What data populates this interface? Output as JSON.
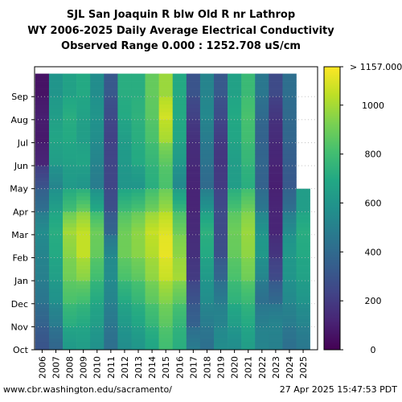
{
  "title_lines": [
    "SJL San Joaquin R blw Old R nr Lathrop",
    "WY 2006-2025 Daily Average Electrical Conductivity",
    "Observed Range 0.000 : 1252.708 uS/cm"
  ],
  "footer": {
    "left": "www.cbr.washington.edu/sacramento/",
    "right": "27 Apr 2025 15:47:53 PDT"
  },
  "colors": {
    "colormap": "viridis",
    "missing": "#ffffff",
    "grid": "#bbbbbb"
  },
  "chart_data": {
    "type": "heatmap",
    "title": "SJL San Joaquin R blw Old R nr Lathrop",
    "x": [
      "2006",
      "2007",
      "2008",
      "2009",
      "2010",
      "2011",
      "2012",
      "2013",
      "2014",
      "2015",
      "2016",
      "2017",
      "2018",
      "2019",
      "2020",
      "2021",
      "2022",
      "2023",
      "2024",
      "2025"
    ],
    "y_labels": [
      "Oct",
      "Nov",
      "Dec",
      "Jan",
      "Feb",
      "Mar",
      "Apr",
      "May",
      "Jun",
      "Jul",
      "Aug",
      "Sep"
    ],
    "colorbar": {
      "min": 0,
      "max": 1157,
      "ticks": [
        0,
        200,
        400,
        600,
        800,
        1000
      ],
      "top_label": "> 1157.000"
    },
    "value_units": "uS/cm",
    "monthly_values": {
      "2006": [
        300,
        360,
        450,
        500,
        520,
        560,
        420,
        300,
        120,
        80,
        100,
        60
      ],
      "2007": [
        380,
        480,
        580,
        650,
        700,
        720,
        650,
        520,
        640,
        680,
        640,
        600
      ],
      "2008": [
        620,
        720,
        820,
        900,
        950,
        1000,
        800,
        620,
        660,
        700,
        720,
        660
      ],
      "2009": [
        640,
        700,
        800,
        950,
        1050,
        1050,
        880,
        600,
        680,
        640,
        660,
        700
      ],
      "2010": [
        580,
        640,
        700,
        800,
        880,
        900,
        700,
        480,
        520,
        560,
        600,
        560
      ],
      "2011": [
        420,
        460,
        520,
        560,
        540,
        380,
        280,
        240,
        240,
        220,
        260,
        320
      ],
      "2012": [
        560,
        620,
        700,
        820,
        900,
        900,
        780,
        600,
        620,
        640,
        700,
        720
      ],
      "2013": [
        600,
        680,
        760,
        860,
        950,
        960,
        820,
        600,
        700,
        720,
        740,
        720
      ],
      "2014": [
        680,
        760,
        860,
        960,
        1020,
        1060,
        900,
        720,
        760,
        820,
        860,
        880
      ],
      "2015": [
        800,
        860,
        940,
        1060,
        1120,
        1100,
        980,
        820,
        860,
        1000,
        1080,
        980
      ],
      "2016": [
        720,
        760,
        860,
        1000,
        960,
        900,
        760,
        540,
        620,
        680,
        700,
        700
      ],
      "2017": [
        480,
        360,
        300,
        200,
        160,
        140,
        120,
        120,
        140,
        160,
        220,
        300
      ],
      "2018": [
        420,
        480,
        560,
        620,
        700,
        740,
        600,
        400,
        440,
        480,
        540,
        520
      ],
      "2019": [
        560,
        520,
        480,
        380,
        280,
        260,
        260,
        200,
        180,
        200,
        260,
        320
      ],
      "2020": [
        560,
        640,
        740,
        820,
        880,
        900,
        820,
        640,
        640,
        680,
        700,
        660
      ],
      "2021": [
        640,
        700,
        780,
        900,
        960,
        980,
        900,
        720,
        760,
        800,
        820,
        780
      ],
      "2022": [
        520,
        500,
        420,
        520,
        620,
        600,
        460,
        360,
        380,
        360,
        400,
        460
      ],
      "2023": [
        500,
        520,
        400,
        260,
        180,
        120,
        120,
        100,
        120,
        140,
        180,
        260
      ],
      "2024": [
        420,
        480,
        540,
        600,
        620,
        560,
        420,
        320,
        340,
        380,
        400,
        420
      ],
      "2025": [
        460,
        520,
        600,
        660,
        700,
        720,
        640
      ]
    }
  }
}
